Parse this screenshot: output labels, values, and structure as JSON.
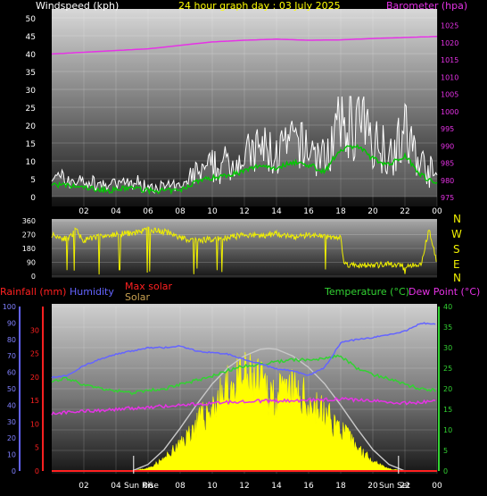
{
  "colors": {
    "wind": "#ffffff",
    "wind_avg": "#00c800",
    "wind_gust_fill": "#cccccc",
    "barometer": "#e632e6",
    "direction": "#f0f000",
    "temperature": "#32d232",
    "humidity": "#6464ff",
    "dewpoint": "#e632e6",
    "rainfall": "#ff2020",
    "solar": "#ffff00",
    "maxsolar": "#c8c8c8",
    "axis_text": "#ffffff",
    "rain_axis_text": "#ff2020",
    "hum_axis_text": "#8080ff",
    "temp_axis_text": "#32d232",
    "baro_axis_text": "#e632e6"
  },
  "header": {
    "wind_title": "Windspeed (kph)",
    "date_title": "24 hour graph day : 03 July 2025",
    "baro_title": "Barometer (hpa)"
  },
  "labels": {
    "rainfall": "Rainfall (mm)",
    "humidity": "Humidity",
    "max_solar": "Max solar",
    "solar": "Solar",
    "temperature": "Temperature (°C)",
    "dewpoint": "Dew Point (°C)",
    "sunrise": "Sun Rise",
    "sunset": "Sun Set"
  },
  "compass": [
    "N",
    "W",
    "S",
    "E",
    "N"
  ],
  "chart_data": [
    {
      "type": "line",
      "title": "24 hour graph day : 03 July 2025",
      "x_ticks": [
        "02",
        "04",
        "06",
        "08",
        "10",
        "12",
        "14",
        "16",
        "18",
        "20",
        "22",
        "00"
      ],
      "y_left_label": "Windspeed (kph)",
      "y_left_ticks": [
        0,
        5,
        10,
        15,
        20,
        25,
        30,
        35,
        40,
        45,
        50
      ],
      "y_left_lim": [
        0,
        50
      ],
      "y_right_label": "Barometer (hpa)",
      "y_right_ticks": [
        975,
        980,
        985,
        990,
        995,
        1000,
        1005,
        1010,
        1015,
        1020,
        1025
      ],
      "y_right_lim": [
        975,
        1027
      ],
      "series": [
        {
          "name": "Windspeed (kph)",
          "hours": [
            0,
            2,
            3.5,
            5,
            6,
            7,
            8,
            9,
            10,
            11,
            12,
            13,
            14,
            15,
            16,
            17,
            18,
            19,
            20,
            21,
            22,
            23,
            24
          ],
          "values": [
            3,
            2,
            1,
            2,
            1,
            1,
            1,
            4,
            5,
            6,
            7,
            9,
            8,
            10,
            9,
            7,
            14,
            15,
            11,
            9,
            12,
            6,
            3
          ]
        },
        {
          "name": "Barometer (hpa)",
          "hours": [
            0,
            2,
            4,
            6,
            8,
            10,
            12,
            14,
            16,
            18,
            20,
            22,
            24
          ],
          "values": [
            1016.5,
            1017,
            1017.5,
            1018,
            1019,
            1020,
            1020.5,
            1020.8,
            1020.5,
            1020.6,
            1021,
            1021.3,
            1021.6
          ]
        }
      ]
    },
    {
      "type": "line",
      "y_ticks": [
        0,
        90,
        180,
        270,
        360
      ],
      "y_lim": [
        0,
        360
      ],
      "series": [
        {
          "name": "Wind direction",
          "hours": [
            0,
            1,
            1.5,
            2,
            3,
            4,
            5,
            6,
            7,
            8,
            9,
            10,
            11,
            12,
            13,
            14,
            15,
            16,
            17,
            18,
            18.2,
            19,
            20,
            21,
            22,
            23,
            23.5,
            24
          ],
          "values": [
            270,
            240,
            300,
            230,
            260,
            270,
            280,
            300,
            290,
            250,
            230,
            240,
            250,
            270,
            260,
            280,
            250,
            270,
            260,
            250,
            80,
            70,
            70,
            75,
            70,
            80,
            300,
            90
          ]
        }
      ]
    },
    {
      "type": "area",
      "x_ticks": [
        "02",
        "04",
        "06",
        "08",
        "10",
        "12",
        "14",
        "16",
        "18",
        "20",
        "22",
        "00"
      ],
      "y_humidity_ticks": [
        0,
        10,
        20,
        30,
        40,
        50,
        60,
        70,
        80,
        90,
        100
      ],
      "y_rain_ticks": [
        0,
        5,
        10,
        15,
        20,
        25,
        30
      ],
      "y_temp_ticks": [
        0,
        5,
        10,
        15,
        20,
        25,
        30,
        35,
        40
      ],
      "series": [
        {
          "name": "Humidity",
          "hours": [
            0,
            1,
            2,
            3,
            4,
            5,
            6,
            7,
            8,
            9,
            10,
            11,
            12,
            13,
            14,
            15,
            16,
            17,
            18,
            19,
            20,
            21,
            22,
            23,
            24
          ],
          "values": [
            57,
            58,
            64,
            68,
            71,
            73,
            75,
            75,
            76,
            73,
            72,
            71,
            68,
            65,
            62,
            61,
            58,
            63,
            78,
            80,
            81,
            83,
            85,
            90,
            89
          ]
        },
        {
          "name": "Temperature (°C)",
          "hours": [
            0,
            1,
            2,
            3,
            4,
            5,
            6,
            7,
            8,
            9,
            10,
            11,
            12,
            13,
            14,
            15,
            16,
            17,
            18,
            19,
            20,
            21,
            22,
            23,
            24
          ],
          "values": [
            22,
            22.5,
            21,
            20,
            19.5,
            19,
            19.5,
            20,
            21,
            22,
            23,
            24.5,
            25.5,
            26,
            26.5,
            27,
            27,
            27.5,
            28,
            25,
            23.5,
            22.5,
            21,
            20,
            19.5
          ]
        },
        {
          "name": "Dew Point (°C)",
          "hours": [
            0,
            2,
            4,
            6,
            8,
            10,
            12,
            14,
            16,
            18,
            20,
            22,
            24
          ],
          "values": [
            14,
            14.5,
            15,
            15.5,
            16,
            16.5,
            17,
            17,
            17.2,
            17.5,
            17,
            16.5,
            17
          ]
        },
        {
          "name": "Solar",
          "hours": [
            5,
            6,
            7,
            8,
            9,
            10,
            11,
            12,
            13,
            14,
            15,
            16,
            17,
            18,
            19,
            20,
            21,
            22
          ],
          "values": [
            0,
            20,
            90,
            200,
            350,
            480,
            620,
            700,
            650,
            560,
            600,
            520,
            430,
            320,
            180,
            80,
            15,
            0
          ]
        },
        {
          "name": "Max solar",
          "hours": [
            5,
            6,
            7,
            8,
            9,
            10,
            11,
            12,
            13,
            13.5,
            14,
            15,
            16,
            17,
            18,
            19,
            20,
            21,
            22
          ],
          "values": [
            0,
            40,
            130,
            260,
            400,
            530,
            630,
            700,
            740,
            745,
            740,
            700,
            630,
            530,
            400,
            260,
            130,
            40,
            0
          ]
        }
      ]
    }
  ]
}
